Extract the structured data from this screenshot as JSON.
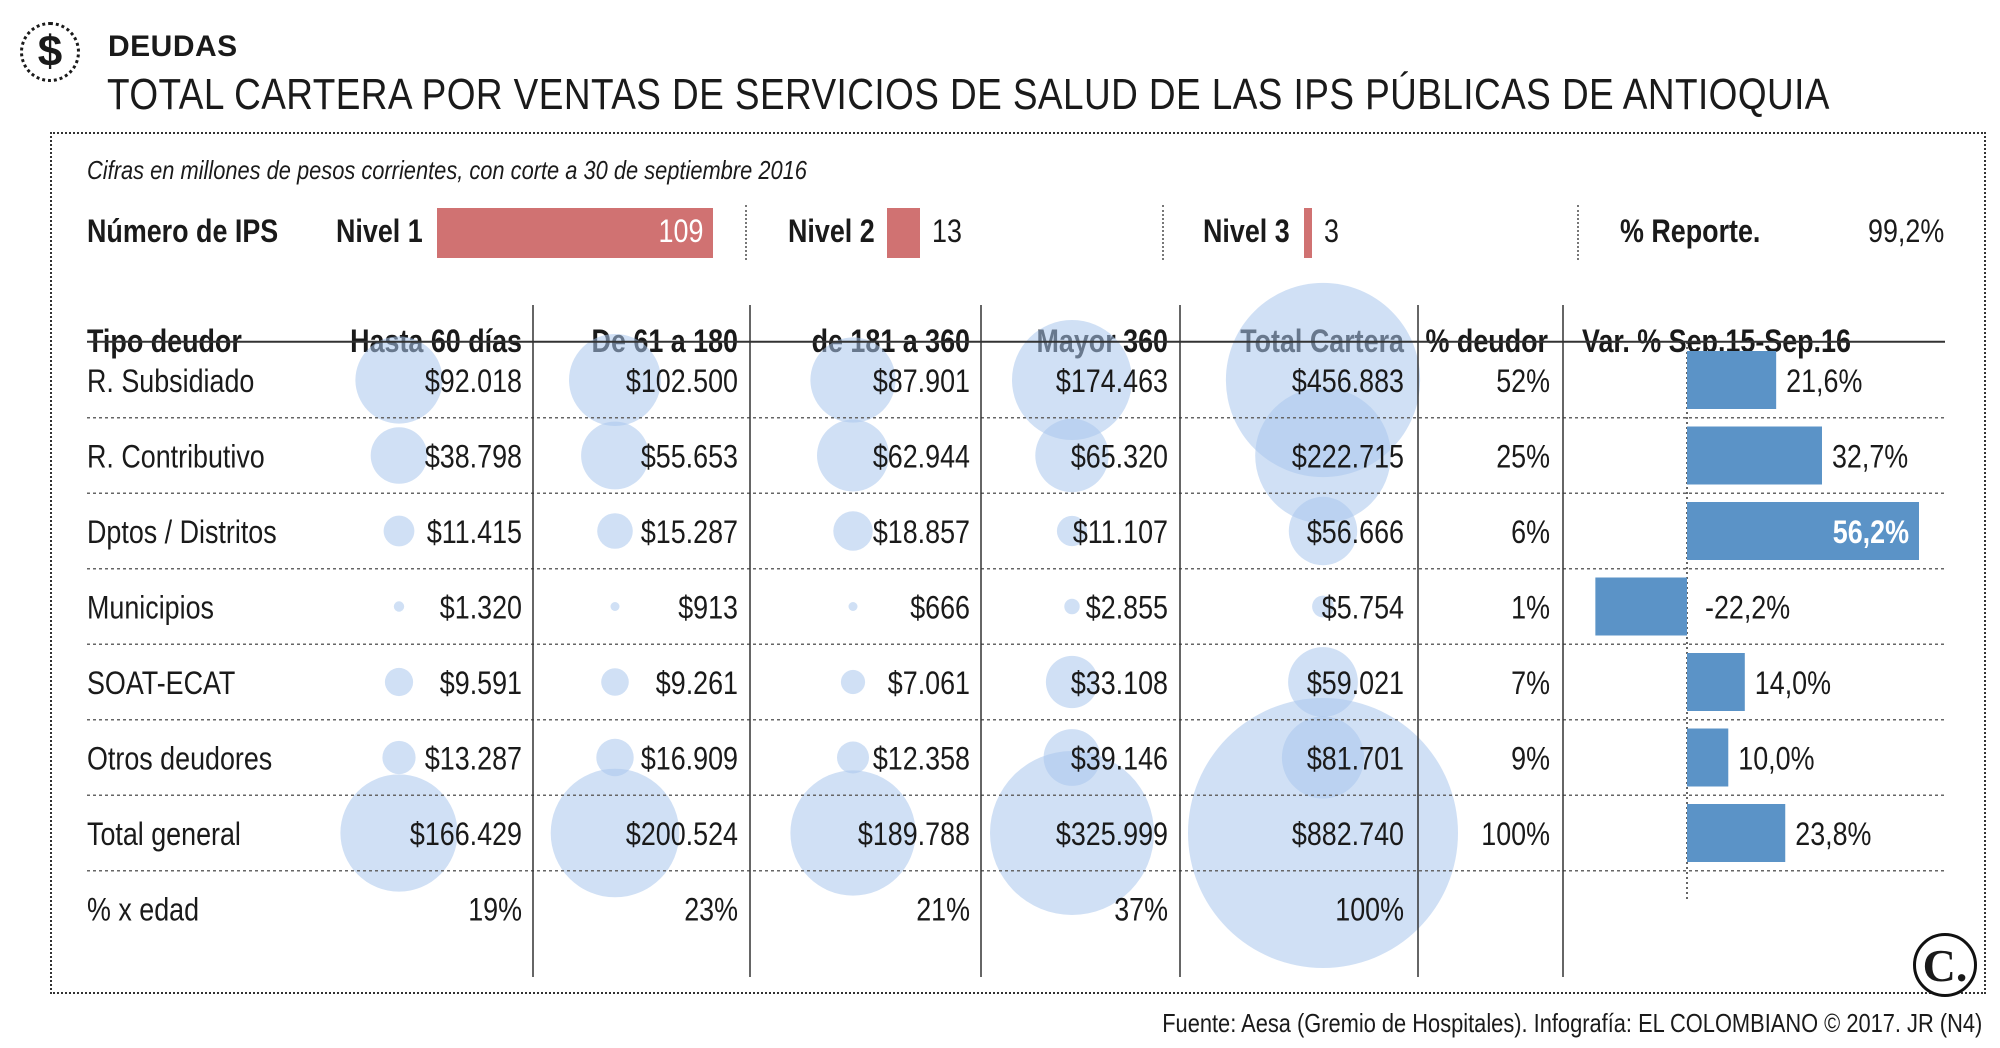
{
  "header": {
    "section": "DEUDAS",
    "title": "TOTAL CARTERA POR VENTAS DE SERVICIOS DE SALUD DE LAS IPS PÚBLICAS DE ANTIOQUIA",
    "subtitle": "Cifras en millones de pesos corrientes, con corte a 30 de septiembre 2016",
    "dollar_symbol": "$"
  },
  "ips_levels": {
    "label": "Número de IPS",
    "nivel1_label": "Nivel 1",
    "nivel1_value": "109",
    "nivel1_count": 109,
    "nivel2_label": "Nivel 2",
    "nivel2_value": "13",
    "nivel2_count": 13,
    "nivel3_label": "Nivel 3",
    "nivel3_value": "3",
    "nivel3_count": 3,
    "report_label": "% Reporte.",
    "report_value": "99,2%"
  },
  "colors": {
    "bubble": "#aac7ec",
    "var_bar": "#5b93c7",
    "ips_bar": "#d07272"
  },
  "chart_data": {
    "type": "table",
    "title": "TOTAL CARTERA POR VENTAS DE SERVICIOS DE SALUD DE LAS IPS PÚBLICAS DE ANTIOQUIA",
    "headers": [
      "Tipo deudor",
      "Hasta 60 días",
      "De 61 a 180",
      "de 181 a 360",
      "Mayor 360",
      "Total Cartera",
      "% deudor",
      "Var. % Sep.15-Sep.16"
    ],
    "rows": [
      {
        "name": "R. Subsidiado",
        "values": [
          92018,
          102500,
          87901,
          174463,
          456883
        ],
        "labels": [
          "$92.018",
          "$102.500",
          "$87.901",
          "$174.463",
          "$456.883"
        ],
        "pct": "52%",
        "var": 21.6,
        "var_label": "21,6%"
      },
      {
        "name": "R. Contributivo",
        "values": [
          38798,
          55653,
          62944,
          65320,
          222715
        ],
        "labels": [
          "$38.798",
          "$55.653",
          "$62.944",
          "$65.320",
          "$222.715"
        ],
        "pct": "25%",
        "var": 32.7,
        "var_label": "32,7%"
      },
      {
        "name": "Dptos / Distritos",
        "values": [
          11415,
          15287,
          18857,
          11107,
          56666
        ],
        "labels": [
          "$11.415",
          "$15.287",
          "$18.857",
          "$11.107",
          "$56.666"
        ],
        "pct": "6%",
        "var": 56.2,
        "var_label": "56,2%"
      },
      {
        "name": "Municipios",
        "values": [
          1320,
          913,
          666,
          2855,
          5754
        ],
        "labels": [
          "$1.320",
          "$913",
          "$666",
          "$2.855",
          "$5.754"
        ],
        "pct": "1%",
        "var": -22.2,
        "var_label": "-22,2%"
      },
      {
        "name": "SOAT-ECAT",
        "values": [
          9591,
          9261,
          7061,
          33108,
          59021
        ],
        "labels": [
          "$9.591",
          "$9.261",
          "$7.061",
          "$33.108",
          "$59.021"
        ],
        "pct": "7%",
        "var": 14.0,
        "var_label": "14,0%"
      },
      {
        "name": "Otros deudores",
        "values": [
          13287,
          16909,
          12358,
          39146,
          81701
        ],
        "labels": [
          "$13.287",
          "$16.909",
          "$12.358",
          "$39.146",
          "$81.701"
        ],
        "pct": "9%",
        "var": 10.0,
        "var_label": "10,0%"
      },
      {
        "name": "Total general",
        "values": [
          166429,
          200524,
          189788,
          325999,
          882740
        ],
        "labels": [
          "$166.429",
          "$200.524",
          "$189.788",
          "$325.999",
          "$882.740"
        ],
        "pct": "100%",
        "var": 23.8,
        "var_label": "23,8%"
      }
    ],
    "age_row": {
      "name": "% x edad",
      "values": [
        "19%",
        "23%",
        "21%",
        "37%",
        "100%"
      ]
    }
  },
  "footer": {
    "source": "Fuente: Aesa (Gremio de Hospitales). Infografía: EL COLOMBIANO © 2017. JR (N4)",
    "logo": "C."
  }
}
